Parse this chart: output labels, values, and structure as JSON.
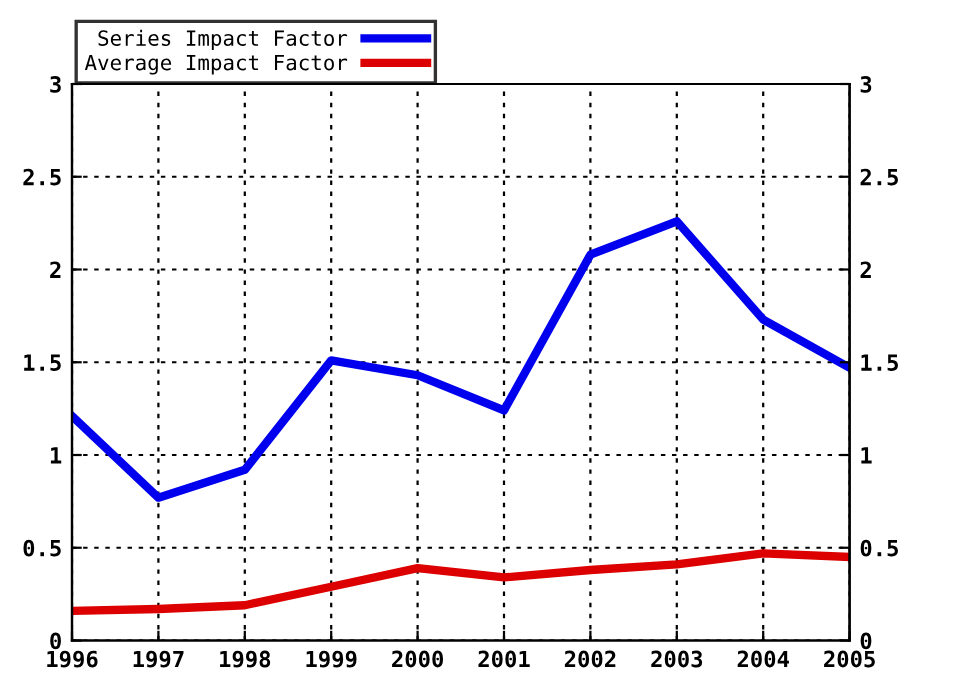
{
  "chart_data": {
    "type": "line",
    "x": [
      1996,
      1997,
      1998,
      1999,
      2000,
      2001,
      2002,
      2003,
      2004,
      2005
    ],
    "series": [
      {
        "name": "Series Impact Factor",
        "color": "#0000ee",
        "values": [
          1.21,
          0.77,
          0.92,
          1.51,
          1.43,
          1.24,
          2.08,
          2.26,
          1.73,
          1.47
        ]
      },
      {
        "name": "Average Impact Factor",
        "color": "#dd0000",
        "values": [
          0.16,
          0.17,
          0.19,
          0.29,
          0.39,
          0.34,
          0.38,
          0.41,
          0.47,
          0.45
        ]
      }
    ],
    "xlim": [
      1996,
      2005
    ],
    "xticks": [
      1996,
      1997,
      1998,
      1999,
      2000,
      2001,
      2002,
      2003,
      2004,
      2005
    ],
    "ylim": [
      0,
      3
    ],
    "yticks": [
      0,
      0.5,
      1,
      1.5,
      2,
      2.5,
      3
    ],
    "y2lim": [
      0,
      3
    ],
    "y2ticks": [
      0,
      0.5,
      1,
      1.5,
      2,
      2.5,
      3
    ],
    "grid": true,
    "legend": "top left",
    "line_style": "solid",
    "marker": "none"
  }
}
